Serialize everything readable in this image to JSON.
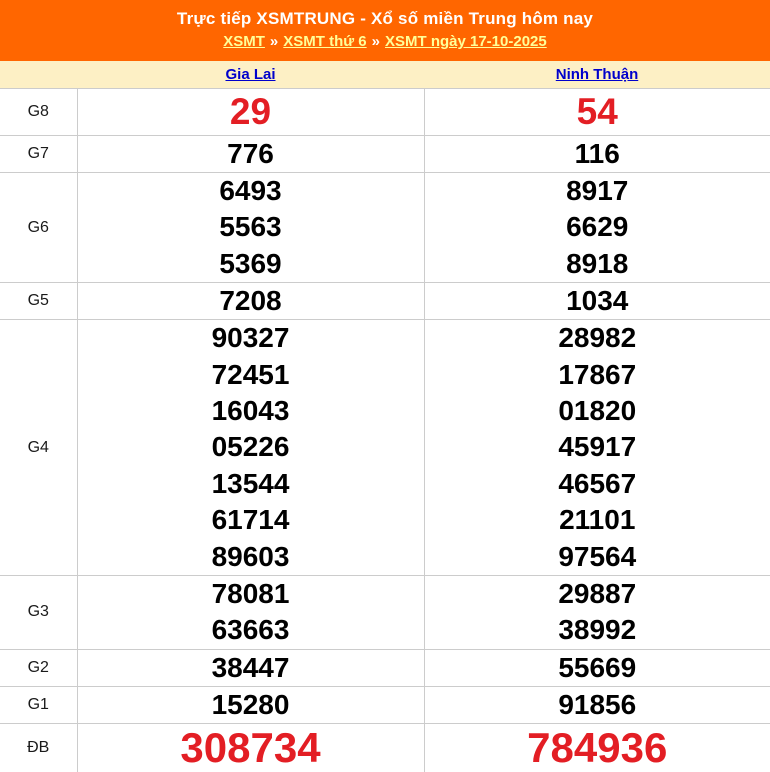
{
  "header": {
    "title": "Trực tiếp XSMTRUNG - Xổ số miền Trung hôm nay",
    "separator": "»",
    "breadcrumb": [
      {
        "label": "XSMT"
      },
      {
        "label": "XSMT thứ 6"
      },
      {
        "label": "XSMT ngày 17-10-2025"
      }
    ]
  },
  "colors": {
    "header_bg": "#FF6600",
    "header_text": "#FFFFFF",
    "breadcrumb_link": "#FFFF99",
    "table_header_bg": "#FDF0C5",
    "province_link": "#0000CC",
    "highlight_red": "#E31E24",
    "number_black": "#000000",
    "border": "#CCCCCC"
  },
  "table": {
    "provinces": [
      {
        "label": "Gia Lai"
      },
      {
        "label": "Ninh Thuận"
      }
    ],
    "rows": [
      {
        "label": "G8",
        "gia_lai": [
          "29"
        ],
        "ninh_thuan": [
          "54"
        ],
        "highlight": true
      },
      {
        "label": "G7",
        "gia_lai": [
          "776"
        ],
        "ninh_thuan": [
          "116"
        ]
      },
      {
        "label": "G6",
        "gia_lai": [
          "6493",
          "5563",
          "5369"
        ],
        "ninh_thuan": [
          "8917",
          "6629",
          "8918"
        ]
      },
      {
        "label": "G5",
        "gia_lai": [
          "7208"
        ],
        "ninh_thuan": [
          "1034"
        ]
      },
      {
        "label": "G4",
        "gia_lai": [
          "90327",
          "72451",
          "16043",
          "05226",
          "13544",
          "61714",
          "89603"
        ],
        "ninh_thuan": [
          "28982",
          "17867",
          "01820",
          "45917",
          "46567",
          "21101",
          "97564"
        ]
      },
      {
        "label": "G3",
        "gia_lai": [
          "78081",
          "63663"
        ],
        "ninh_thuan": [
          "29887",
          "38992"
        ]
      },
      {
        "label": "G2",
        "gia_lai": [
          "38447"
        ],
        "ninh_thuan": [
          "55669"
        ]
      },
      {
        "label": "G1",
        "gia_lai": [
          "15280"
        ],
        "ninh_thuan": [
          "91856"
        ]
      },
      {
        "label": "ĐB",
        "gia_lai": [
          "308734"
        ],
        "ninh_thuan": [
          "784936"
        ],
        "highlight": true
      }
    ]
  }
}
